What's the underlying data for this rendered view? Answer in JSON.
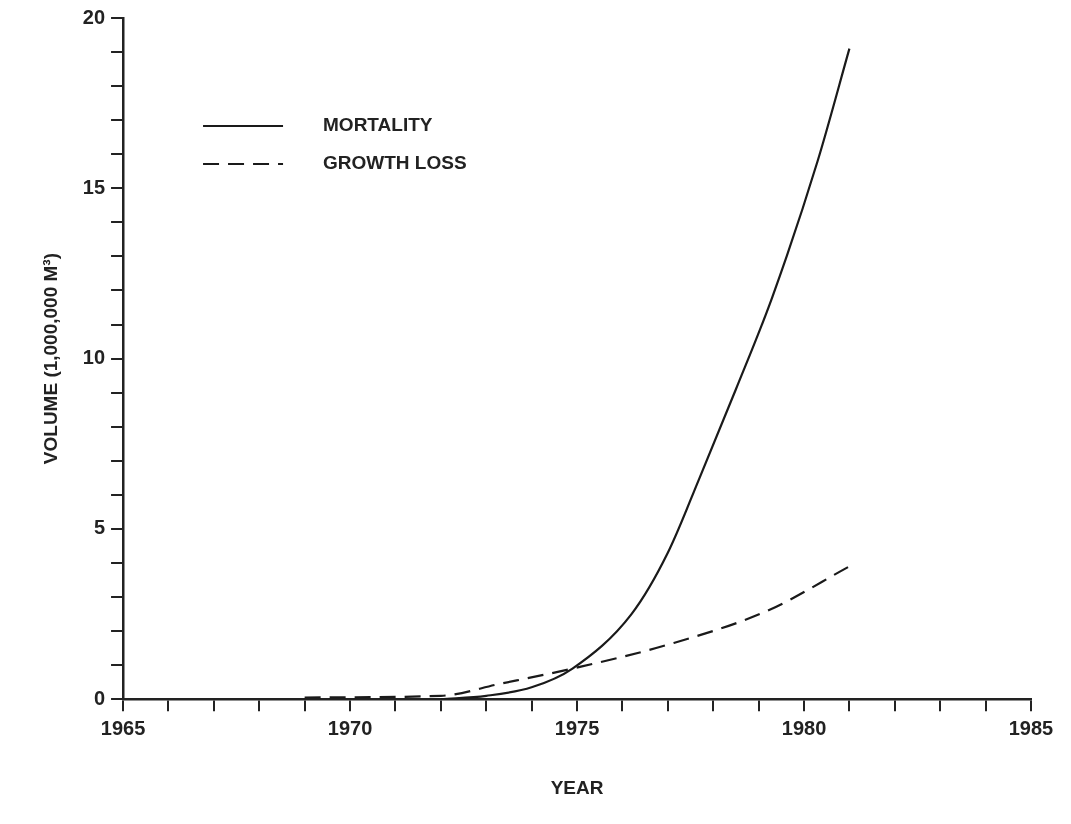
{
  "chart_data": {
    "type": "line",
    "xlabel": "YEAR",
    "ylabel": "VOLUME (1,000,000 M³)",
    "xlim": [
      1965,
      1985
    ],
    "ylim": [
      0,
      20
    ],
    "xticks": [
      1965,
      {
        "value": 1966,
        "label": null
      },
      {
        "value": 1967,
        "label": null
      },
      {
        "value": 1968,
        "label": null
      },
      {
        "value": 1969,
        "label": null
      },
      1970,
      {
        "value": 1971,
        "label": null
      },
      {
        "value": 1972,
        "label": null
      },
      {
        "value": 1973,
        "label": null
      },
      {
        "value": 1974,
        "label": null
      },
      1975,
      {
        "value": 1976,
        "label": null
      },
      {
        "value": 1977,
        "label": null
      },
      {
        "value": 1978,
        "label": null
      },
      {
        "value": 1979,
        "label": null
      },
      1980,
      {
        "value": 1981,
        "label": null
      },
      {
        "value": 1982,
        "label": null
      },
      {
        "value": 1983,
        "label": null
      },
      {
        "value": 1984,
        "label": null
      },
      1985
    ],
    "yticks": [
      0,
      {
        "value": 1,
        "label": null
      },
      {
        "value": 2,
        "label": null
      },
      {
        "value": 3,
        "label": null
      },
      {
        "value": 4,
        "label": null
      },
      5,
      {
        "value": 6,
        "label": null
      },
      {
        "value": 7,
        "label": null
      },
      {
        "value": 8,
        "label": null
      },
      {
        "value": 9,
        "label": null
      },
      10,
      {
        "value": 11,
        "label": null
      },
      {
        "value": 12,
        "label": null
      },
      {
        "value": 13,
        "label": null
      },
      {
        "value": 14,
        "label": null
      },
      15,
      {
        "value": 16,
        "label": null
      },
      {
        "value": 17,
        "label": null
      },
      {
        "value": 18,
        "label": null
      },
      {
        "value": 19,
        "label": null
      },
      20
    ],
    "legend": "top left",
    "marker": "none",
    "series": [
      {
        "name": "MORTALITY",
        "color": "#1a1a1a",
        "line_style": "solid",
        "x": [
          1972,
          1973,
          1974,
          1974.9,
          1976.2,
          1977,
          1977.7,
          1978.5,
          1979.3,
          1980.3,
          1981
        ],
        "values": [
          0,
          0.1,
          0.35,
          0.9,
          2.5,
          4.3,
          6.5,
          9.1,
          11.8,
          15.8,
          19.1
        ]
      },
      {
        "name": "GROWTH LOSS",
        "color": "#1a1a1a",
        "line_style": "dashed",
        "x": [
          1969,
          1972,
          1973.3,
          1974.9,
          1977,
          1979.2,
          1981
        ],
        "values": [
          0.05,
          0.1,
          0.45,
          0.9,
          1.6,
          2.6,
          3.9
        ]
      }
    ]
  }
}
